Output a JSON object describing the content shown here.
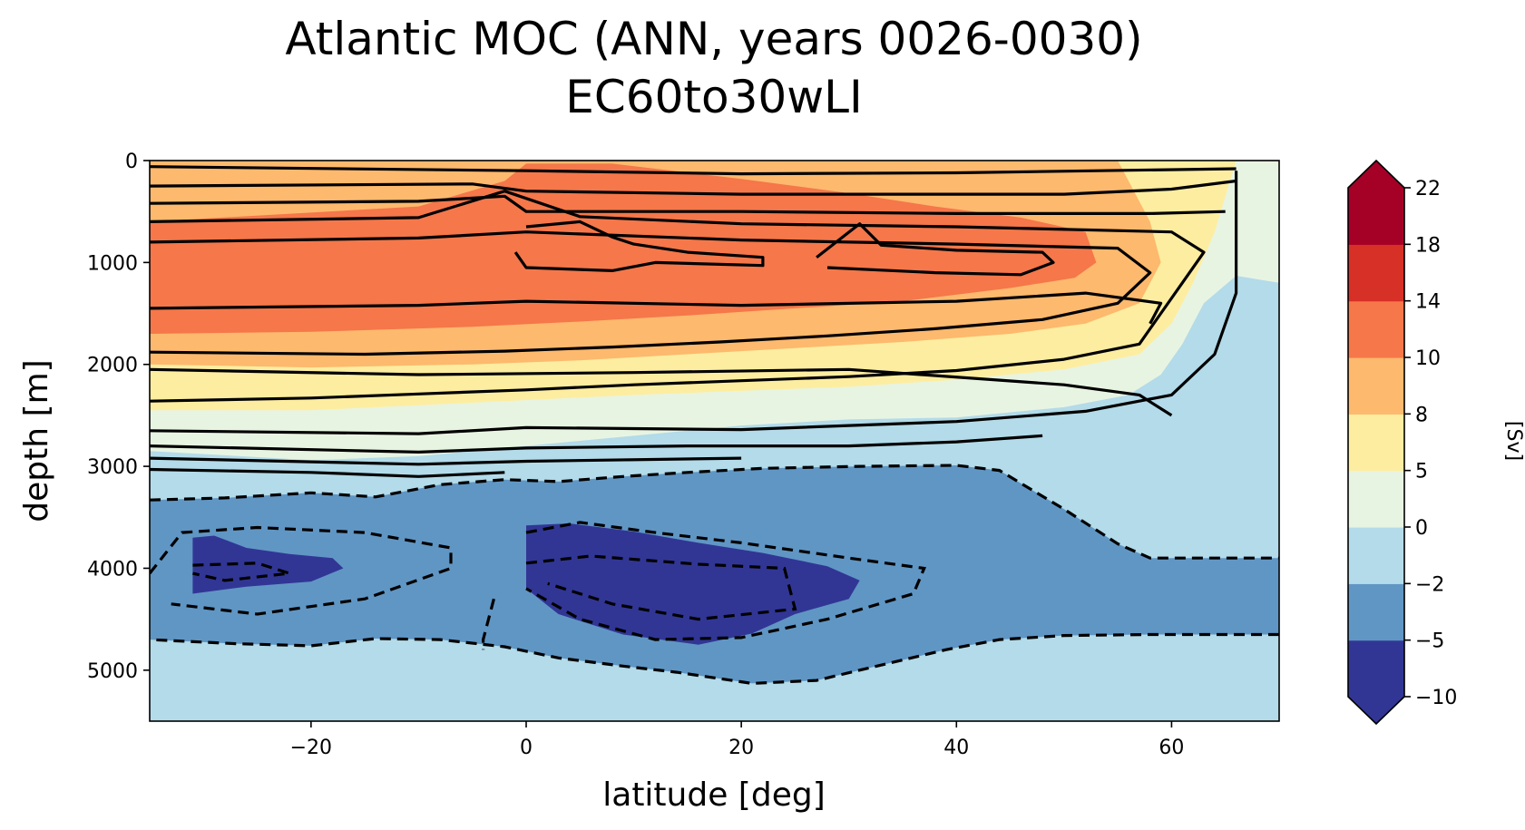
{
  "chart_data": {
    "type": "contourf",
    "title": "Atlantic MOC (ANN, years 0026-0030)",
    "subtitle": "EC60to30wLI",
    "xlabel": "latitude [deg]",
    "ylabel": "depth [m]",
    "xlim": [
      -35,
      70
    ],
    "ylim": [
      5500,
      0
    ],
    "xticks": [
      -20,
      0,
      20,
      40,
      60
    ],
    "xtick_labels": [
      "−20",
      "0",
      "20",
      "40",
      "60"
    ],
    "yticks": [
      0,
      1000,
      2000,
      3000,
      4000,
      5000
    ],
    "ytick_labels": [
      "0",
      "1000",
      "2000",
      "3000",
      "4000",
      "5000"
    ],
    "colorbar": {
      "label": "[Sv]",
      "levels": [
        -10,
        -5,
        -2,
        0,
        5,
        8,
        10,
        14,
        18,
        22
      ],
      "tick_labels": [
        "−10",
        "−5",
        "−2",
        "0",
        "5",
        "8",
        "10",
        "14",
        "18",
        "22"
      ],
      "colors": [
        "#313695",
        "#6096c4",
        "#b3dbe9",
        "#e8f4e2",
        "#fdeda0",
        "#fdb96d",
        "#f5774a",
        "#d73027",
        "#a50026"
      ],
      "extend": "both"
    },
    "features": [
      {
        "name": "upper overturning cell",
        "sign": "positive",
        "max_Sv": 14,
        "lat_range": [
          -35,
          66
        ],
        "depth_range": [
          0,
          3000
        ]
      },
      {
        "name": "southern abyssal cell",
        "sign": "negative",
        "min_Sv": -10,
        "lat_range": [
          -31,
          -17
        ],
        "depth_range": [
          3700,
          4300
        ]
      },
      {
        "name": "tropical abyssal cell",
        "sign": "negative",
        "min_Sv": -10,
        "lat_range": [
          0,
          31
        ],
        "depth_range": [
          3550,
          4750
        ]
      }
    ]
  }
}
